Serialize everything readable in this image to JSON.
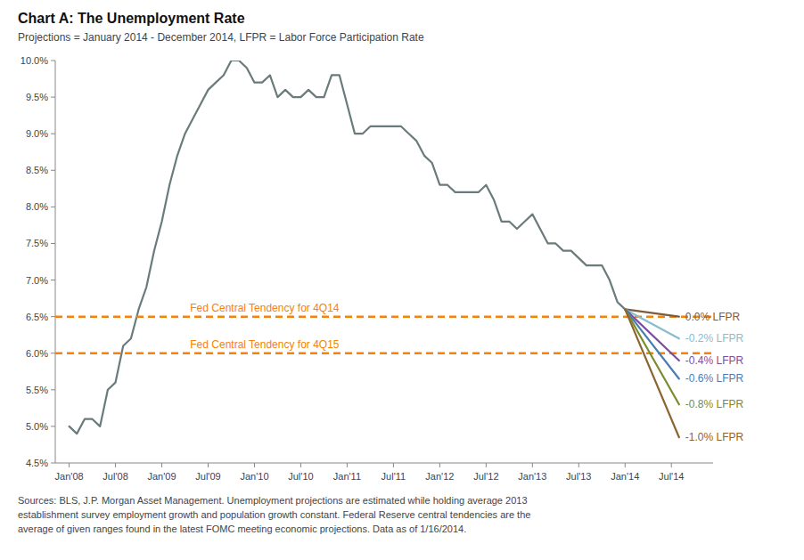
{
  "chart_data": {
    "type": "line",
    "title": "Chart A: The Unemployment Rate",
    "subtitle": "Projections = January 2014 - December 2014, LFPR = Labor Force Participation Rate",
    "footnote": "Sources: BLS, J.P. Morgan Asset Management. Unemployment projections are estimated while holding average 2013\nestablishment survey employment growth and population growth constant. Federal Reserve central tendencies are the\naverage of given ranges found in the latest FOMC meeting economic projections. Data as of 1/16/2014.",
    "grid": false,
    "xlim": [
      2007.85,
      2014.95
    ],
    "ylim": [
      4.5,
      10.0
    ],
    "xticks": [
      {
        "value": 2008.0,
        "label": "Jan'08"
      },
      {
        "value": 2008.5,
        "label": "Jul'08"
      },
      {
        "value": 2009.0,
        "label": "Jan'09"
      },
      {
        "value": 2009.5,
        "label": "Jul'09"
      },
      {
        "value": 2010.0,
        "label": "Jan'10"
      },
      {
        "value": 2010.5,
        "label": "Jul'10"
      },
      {
        "value": 2011.0,
        "label": "Jan'11"
      },
      {
        "value": 2011.5,
        "label": "Jul'11"
      },
      {
        "value": 2012.0,
        "label": "Jan'12"
      },
      {
        "value": 2012.5,
        "label": "Jul'12"
      },
      {
        "value": 2013.0,
        "label": "Jan'13"
      },
      {
        "value": 2013.5,
        "label": "Jul'13"
      },
      {
        "value": 2014.0,
        "label": "Jan'14"
      },
      {
        "value": 2014.5,
        "label": "Jul'14"
      }
    ],
    "yticks": [
      {
        "value": 4.5,
        "label": "4.5%"
      },
      {
        "value": 5.0,
        "label": "5.0%"
      },
      {
        "value": 5.5,
        "label": "5.5%"
      },
      {
        "value": 6.0,
        "label": "6.0%"
      },
      {
        "value": 6.5,
        "label": "6.5%"
      },
      {
        "value": 7.0,
        "label": "7.0%"
      },
      {
        "value": 7.5,
        "label": "7.5%"
      },
      {
        "value": 8.0,
        "label": "8.0%"
      },
      {
        "value": 8.5,
        "label": "8.5%"
      },
      {
        "value": 9.0,
        "label": "9.0%"
      },
      {
        "value": 9.5,
        "label": "9.5%"
      },
      {
        "value": 10.0,
        "label": "10.0%"
      }
    ],
    "series": [
      {
        "color": "#6B7B7B",
        "x": [
          2008.0,
          2008.083,
          2008.167,
          2008.25,
          2008.333,
          2008.417,
          2008.5,
          2008.583,
          2008.667,
          2008.75,
          2008.833,
          2008.917,
          2009.0,
          2009.083,
          2009.167,
          2009.25,
          2009.333,
          2009.417,
          2009.5,
          2009.583,
          2009.667,
          2009.75,
          2009.833,
          2009.917,
          2010.0,
          2010.083,
          2010.167,
          2010.25,
          2010.333,
          2010.417,
          2010.5,
          2010.583,
          2010.667,
          2010.75,
          2010.833,
          2010.917,
          2011.0,
          2011.083,
          2011.167,
          2011.25,
          2011.333,
          2011.417,
          2011.5,
          2011.583,
          2011.667,
          2011.75,
          2011.833,
          2011.917,
          2012.0,
          2012.083,
          2012.167,
          2012.25,
          2012.333,
          2012.417,
          2012.5,
          2012.583,
          2012.667,
          2012.75,
          2012.833,
          2012.917,
          2013.0,
          2013.083,
          2013.167,
          2013.25,
          2013.333,
          2013.417,
          2013.5,
          2013.583,
          2013.667,
          2013.75,
          2013.833,
          2013.917,
          2014.0
        ],
        "values": [
          5.0,
          4.9,
          5.1,
          5.1,
          5.0,
          5.5,
          5.6,
          6.1,
          6.2,
          6.6,
          6.9,
          7.4,
          7.8,
          8.3,
          8.7,
          9.0,
          9.2,
          9.4,
          9.6,
          9.7,
          9.8,
          10.0,
          10.0,
          9.9,
          9.7,
          9.7,
          9.8,
          9.5,
          9.6,
          9.5,
          9.5,
          9.6,
          9.5,
          9.5,
          9.8,
          9.8,
          9.4,
          9.0,
          9.0,
          9.1,
          9.1,
          9.1,
          9.1,
          9.1,
          9.0,
          8.9,
          8.7,
          8.6,
          8.3,
          8.3,
          8.2,
          8.2,
          8.2,
          8.2,
          8.3,
          8.1,
          7.8,
          7.8,
          7.7,
          7.8,
          7.9,
          7.7,
          7.5,
          7.5,
          7.4,
          7.4,
          7.3,
          7.2,
          7.2,
          7.2,
          7.0,
          6.7,
          6.6
        ]
      },
      {
        "type": "hline",
        "name": "Fed Central Tendency for 4Q14",
        "color": "#F5820A",
        "line_style": "dashed",
        "values": [
          6.5
        ]
      },
      {
        "type": "hline",
        "name": "Fed Central Tendency for 4Q15",
        "color": "#F5820A",
        "line_style": "dashed",
        "values": [
          6.0
        ]
      },
      {
        "name": "0.0% LFPR",
        "color": "#7B5C3E",
        "x": [
          2014.0,
          2014.583
        ],
        "values": [
          6.6,
          6.5
        ]
      },
      {
        "name": "-0.2% LFPR",
        "color": "#87BDCE",
        "x": [
          2014.0,
          2014.583
        ],
        "values": [
          6.6,
          6.2
        ]
      },
      {
        "name": "-0.4% LFPR",
        "color": "#7B4F9E",
        "x": [
          2014.0,
          2014.583
        ],
        "values": [
          6.6,
          5.9
        ]
      },
      {
        "name": "-0.6% LFPR",
        "color": "#4A7DB5",
        "x": [
          2014.0,
          2014.583
        ],
        "values": [
          6.6,
          5.65
        ]
      },
      {
        "name": "-0.8% LFPR",
        "color": "#7A8C2A",
        "x": [
          2014.0,
          2014.583
        ],
        "values": [
          6.6,
          5.3
        ]
      },
      {
        "name": "-1.0% LFPR",
        "color": "#8B6530",
        "x": [
          2014.0,
          2014.583
        ],
        "values": [
          6.6,
          4.85
        ]
      }
    ]
  }
}
